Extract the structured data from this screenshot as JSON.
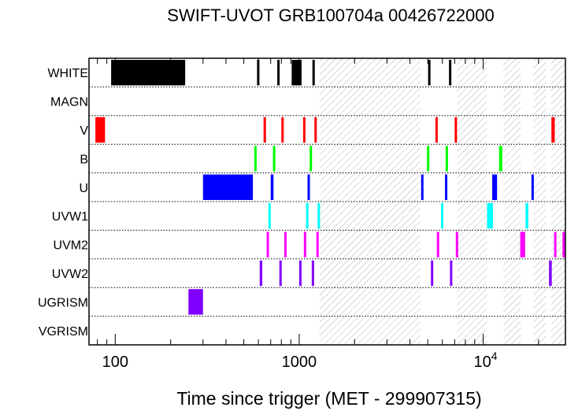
{
  "chart_data": {
    "type": "timeline",
    "title": "SWIFT-UVOT GRB100704a 00426722000",
    "xlabel": "Time since trigger (MET - 299907315)",
    "x_scale": "log",
    "xlim": [
      72,
      28000
    ],
    "x_ticks": [
      {
        "value": 100,
        "label": "100"
      },
      {
        "value": 1000,
        "label": "1000"
      },
      {
        "value": 10000,
        "label": "10",
        "exponent": "4"
      }
    ],
    "filters": [
      {
        "name": "WHITE",
        "color": "#000000",
        "exposures": [
          [
            95,
            240
          ],
          [
            590,
            605
          ],
          [
            760,
            780
          ],
          [
            910,
            1030
          ],
          [
            1180,
            1200
          ],
          [
            5020,
            5120
          ],
          [
            6520,
            6620
          ]
        ]
      },
      {
        "name": "MAGN",
        "color": "#000000",
        "exposures": []
      },
      {
        "name": "V",
        "color": "#ff0000",
        "exposures": [
          [
            78,
            88
          ],
          [
            640,
            660
          ],
          [
            800,
            820
          ],
          [
            1050,
            1070
          ],
          [
            1210,
            1230
          ],
          [
            5500,
            5600
          ],
          [
            7000,
            7100
          ],
          [
            23500,
            24500
          ]
        ]
      },
      {
        "name": "B",
        "color": "#00ff00",
        "exposures": [
          [
            570,
            585
          ],
          [
            720,
            740
          ],
          [
            1140,
            1160
          ],
          [
            4950,
            5050
          ],
          [
            6250,
            6350
          ],
          [
            12200,
            12700
          ]
        ]
      },
      {
        "name": "U",
        "color": "#0000ff",
        "exposures": [
          [
            300,
            560
          ],
          [
            700,
            725
          ],
          [
            1110,
            1130
          ],
          [
            4600,
            4700
          ],
          [
            6200,
            6300
          ],
          [
            11200,
            11900
          ],
          [
            18300,
            18700
          ]
        ]
      },
      {
        "name": "UVW1",
        "color": "#00ffff",
        "exposures": [
          [
            680,
            700
          ],
          [
            1090,
            1110
          ],
          [
            1260,
            1285
          ],
          [
            5900,
            6000
          ],
          [
            10500,
            11300
          ],
          [
            17000,
            17600
          ]
        ]
      },
      {
        "name": "UVM2",
        "color": "#ff00ff",
        "exposures": [
          [
            665,
            680
          ],
          [
            830,
            850
          ],
          [
            1060,
            1080
          ],
          [
            1240,
            1260
          ],
          [
            5600,
            5700
          ],
          [
            7100,
            7200
          ],
          [
            15900,
            16900
          ],
          [
            24300,
            24800
          ],
          [
            27000,
            27600
          ]
        ]
      },
      {
        "name": "UVW2",
        "color": "#8000ff",
        "exposures": [
          [
            610,
            630
          ],
          [
            780,
            800
          ],
          [
            1000,
            1020
          ],
          [
            1170,
            1190
          ],
          [
            5200,
            5300
          ],
          [
            6600,
            6700
          ],
          [
            22800,
            23600
          ]
        ]
      },
      {
        "name": "UGRISM",
        "color": "#8000ff",
        "exposures": [
          [
            250,
            300
          ]
        ]
      },
      {
        "name": "VGRISM",
        "color": "#000000",
        "exposures": []
      }
    ],
    "hatched_intervals": [
      [
        1290,
        4550
      ],
      [
        7200,
        10500
      ],
      [
        12900,
        16000
      ],
      [
        18800,
        22000
      ],
      [
        23400,
        28000
      ]
    ],
    "grid": "dotted horizontal separators between filters"
  }
}
